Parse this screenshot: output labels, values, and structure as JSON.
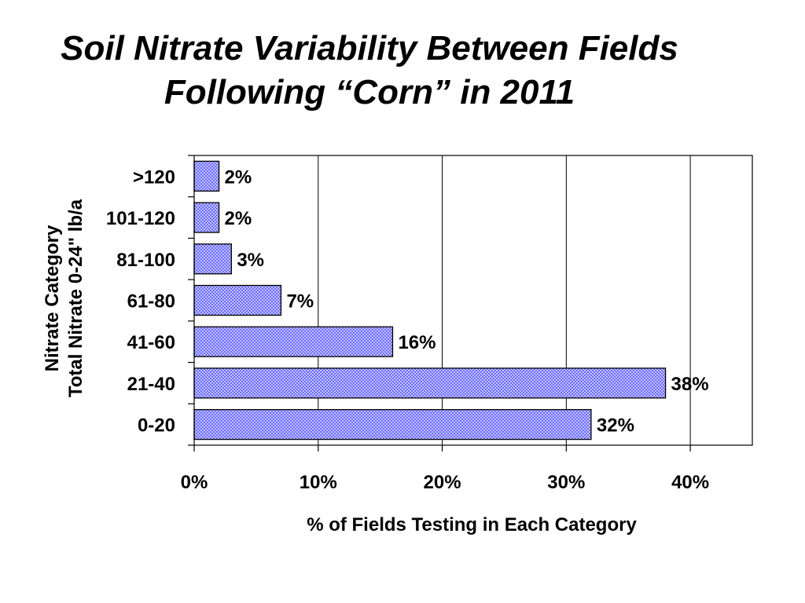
{
  "chart_data": {
    "type": "bar",
    "orientation": "horizontal",
    "title": "Soil Nitrate Variability Between Fields",
    "subtitle": "Following “Corn” in 2011",
    "xlabel": "% of Fields Testing in Each Category",
    "ylabel": "Nitrate Category",
    "ylabel_line2": "Total Nitrate 0-24\" lb/a",
    "categories": [
      ">120",
      "101-120",
      "81-100",
      "61-80",
      "41-60",
      "21-40",
      "0-20"
    ],
    "values": [
      2,
      2,
      3,
      7,
      16,
      38,
      32
    ],
    "data_labels": [
      "2%",
      "2%",
      "3%",
      "7%",
      "16%",
      "38%",
      "32%"
    ],
    "xlim": [
      0,
      45
    ],
    "xticks": [
      0,
      10,
      20,
      30,
      40
    ],
    "xtick_labels": [
      "0%",
      "10%",
      "20%",
      "30%",
      "40%"
    ],
    "grid": "vertical",
    "bar_color": "#5a5aff",
    "bar_pattern": "crosshatch"
  }
}
